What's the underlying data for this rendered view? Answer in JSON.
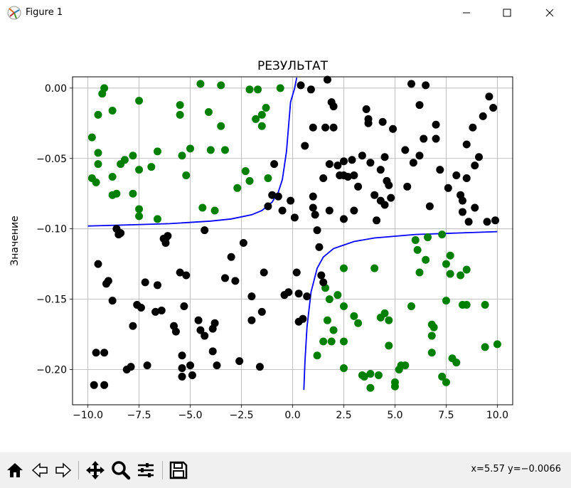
{
  "window": {
    "title": "Figure 1",
    "icon": "matplotlib-icon",
    "controls": [
      "minimize-icon",
      "maximize-icon",
      "close-icon"
    ]
  },
  "toolbar": {
    "buttons": [
      "home-icon",
      "back-icon",
      "forward-icon",
      "pan-icon",
      "zoom-icon",
      "subplots-icon",
      "save-icon"
    ],
    "coordinates": "x=5.57 y=−0.0066"
  },
  "chart_data": {
    "type": "scatter",
    "title": "РЕЗУЛЬТАТ",
    "xlabel": "",
    "ylabel": "Значение",
    "xlim": [
      -10.75,
      10.75
    ],
    "ylim": [
      -0.225,
      0.008
    ],
    "xticks": [
      -10.0,
      -7.5,
      -5.0,
      -2.5,
      0.0,
      2.5,
      5.0,
      7.5,
      10.0
    ],
    "xtick_labels": [
      "−10.0",
      "−7.5",
      "−5.0",
      "−2.5",
      "0.0",
      "2.5",
      "5.0",
      "7.5",
      "10.0"
    ],
    "yticks": [
      0.0,
      -0.05,
      -0.1,
      -0.15,
      -0.2
    ],
    "ytick_labels": [
      "0.00",
      "−0.05",
      "−0.10",
      "−0.15",
      "−0.20"
    ],
    "grid": true,
    "colors": {
      "green": "#008000",
      "black": "#000000",
      "curve": "#0000ff"
    },
    "series": [
      {
        "color": "#008000",
        "points": [
          [
            -9.8,
            -0.035
          ],
          [
            -9.8,
            -0.064
          ],
          [
            -9.6,
            -0.067
          ],
          [
            -9.5,
            -0.046
          ],
          [
            -9.5,
            -0.019
          ],
          [
            -9.5,
            -0.054
          ],
          [
            -9.3,
            -0.004
          ],
          [
            -9.2,
            0.0
          ],
          [
            -8.8,
            -0.016
          ],
          [
            -8.8,
            -0.063
          ],
          [
            -8.8,
            -0.076
          ],
          [
            -8.6,
            -0.075
          ],
          [
            -8.4,
            -0.054
          ],
          [
            -8.2,
            -0.051
          ],
          [
            -7.8,
            -0.048
          ],
          [
            -7.8,
            -0.075
          ],
          [
            -7.5,
            -0.009
          ],
          [
            -7.5,
            -0.058
          ],
          [
            -7.5,
            -0.086
          ],
          [
            -7.5,
            -0.091
          ],
          [
            -6.9,
            -0.056
          ],
          [
            -6.6,
            -0.045
          ],
          [
            -6.6,
            -0.093
          ],
          [
            -5.5,
            -0.012
          ],
          [
            -5.5,
            -0.019
          ],
          [
            -5.4,
            -0.048
          ],
          [
            -5.2,
            -0.062
          ],
          [
            -5.0,
            -0.043
          ],
          [
            -4.5,
            0.003
          ],
          [
            -4.4,
            -0.085
          ],
          [
            -4.1,
            -0.017
          ],
          [
            -4.0,
            -0.044
          ],
          [
            -3.8,
            -0.087
          ],
          [
            -3.5,
            0.002
          ],
          [
            -3.5,
            -0.027
          ],
          [
            -3.3,
            -0.044
          ],
          [
            -2.7,
            -0.071
          ],
          [
            -2.3,
            -0.059
          ],
          [
            -2.1,
            -0.066
          ],
          [
            -1.8,
            -0.022
          ],
          [
            -1.7,
            -0.001
          ],
          [
            -1.5,
            -0.019
          ],
          [
            -1.5,
            -0.027
          ],
          [
            -1.3,
            -0.014
          ],
          [
            -1.2,
            -0.064
          ],
          [
            -0.6,
            0.0
          ],
          [
            -2.1,
            -0.001
          ],
          [
            1.2,
            -0.19
          ],
          [
            1.5,
            -0.18
          ],
          [
            1.6,
            -0.142
          ],
          [
            1.7,
            -0.165
          ],
          [
            2.0,
            -0.172
          ],
          [
            1.9,
            -0.18
          ],
          [
            2.2,
            -0.147
          ],
          [
            2.5,
            -0.128
          ],
          [
            2.5,
            -0.155
          ],
          [
            2.5,
            -0.18
          ],
          [
            2.5,
            -0.199
          ],
          [
            3.0,
            -0.162
          ],
          [
            3.2,
            -0.167
          ],
          [
            3.5,
            -0.205
          ],
          [
            3.8,
            -0.213
          ],
          [
            3.8,
            -0.203
          ],
          [
            4.0,
            -0.128
          ],
          [
            4.2,
            -0.204
          ],
          [
            4.3,
            -0.163
          ],
          [
            4.5,
            -0.16
          ],
          [
            4.7,
            -0.165
          ],
          [
            4.7,
            -0.183
          ],
          [
            5.0,
            -0.209
          ],
          [
            5.0,
            -0.212
          ],
          [
            5.3,
            -0.197
          ],
          [
            5.2,
            -0.2
          ],
          [
            5.5,
            -0.197
          ],
          [
            5.8,
            -0.155
          ],
          [
            6.0,
            -0.108
          ],
          [
            6.1,
            -0.115
          ],
          [
            6.2,
            -0.131
          ],
          [
            6.5,
            -0.122
          ],
          [
            6.6,
            -0.106
          ],
          [
            6.8,
            -0.168
          ],
          [
            6.8,
            -0.176
          ],
          [
            6.8,
            -0.188
          ],
          [
            6.9,
            -0.17
          ],
          [
            7.3,
            -0.104
          ],
          [
            7.3,
            -0.205
          ],
          [
            7.5,
            -0.125
          ],
          [
            7.5,
            -0.151
          ],
          [
            7.7,
            -0.119
          ],
          [
            7.7,
            -0.132
          ],
          [
            7.8,
            -0.192
          ],
          [
            8.0,
            -0.195
          ],
          [
            8.2,
            -0.133
          ],
          [
            8.3,
            -0.154
          ],
          [
            8.5,
            -0.154
          ],
          [
            8.5,
            -0.129
          ],
          [
            9.4,
            -0.184
          ],
          [
            9.4,
            -0.154
          ],
          [
            10.0,
            -0.182
          ],
          [
            1.8,
            -0.15
          ],
          [
            3.4,
            -0.204
          ],
          [
            7.5,
            -0.209
          ]
        ]
      },
      {
        "color": "#000000",
        "points": [
          [
            -9.7,
            -0.211
          ],
          [
            -9.6,
            -0.188
          ],
          [
            -9.5,
            -0.125
          ],
          [
            -9.2,
            -0.188
          ],
          [
            -9.2,
            -0.211
          ],
          [
            -9.1,
            -0.139
          ],
          [
            -9.0,
            -0.137
          ],
          [
            -8.8,
            -0.151
          ],
          [
            -8.6,
            -0.1
          ],
          [
            -8.5,
            -0.104
          ],
          [
            -8.4,
            -0.103
          ],
          [
            -8.1,
            -0.2
          ],
          [
            -7.9,
            -0.198
          ],
          [
            -7.8,
            -0.169
          ],
          [
            -7.6,
            -0.154
          ],
          [
            -7.4,
            -0.156
          ],
          [
            -7.2,
            -0.138
          ],
          [
            -7.1,
            -0.197
          ],
          [
            -6.7,
            -0.159
          ],
          [
            -6.6,
            -0.14
          ],
          [
            -6.4,
            -0.158
          ],
          [
            -6.3,
            -0.107
          ],
          [
            -6.2,
            -0.107
          ],
          [
            -6.2,
            -0.11
          ],
          [
            -6.1,
            -0.105
          ],
          [
            -5.8,
            -0.169
          ],
          [
            -5.7,
            -0.173
          ],
          [
            -5.5,
            -0.131
          ],
          [
            -5.4,
            -0.19
          ],
          [
            -5.4,
            -0.199
          ],
          [
            -5.4,
            -0.205
          ],
          [
            -5.3,
            -0.155
          ],
          [
            -5.2,
            -0.133
          ],
          [
            -5.0,
            -0.197
          ],
          [
            -4.9,
            -0.204
          ],
          [
            -4.6,
            -0.165
          ],
          [
            -4.5,
            -0.172
          ],
          [
            -4.3,
            -0.176
          ],
          [
            -4.3,
            -0.101
          ],
          [
            -3.9,
            -0.171
          ],
          [
            -3.9,
            -0.187
          ],
          [
            -3.8,
            -0.167
          ],
          [
            -3.7,
            -0.197
          ],
          [
            -3.3,
            -0.135
          ],
          [
            -3.0,
            -0.12
          ],
          [
            -2.8,
            -0.137
          ],
          [
            -2.6,
            -0.194
          ],
          [
            -2.4,
            -0.11
          ],
          [
            -2.0,
            -0.148
          ],
          [
            -2.0,
            -0.165
          ],
          [
            -1.6,
            -0.198
          ],
          [
            -1.5,
            -0.159
          ],
          [
            -1.4,
            -0.131
          ],
          [
            -1.2,
            -0.084
          ],
          [
            -1.0,
            -0.076
          ],
          [
            -0.9,
            -0.054
          ],
          [
            -0.7,
            -0.077
          ],
          [
            -0.5,
            -0.087
          ],
          [
            -0.4,
            -0.147
          ],
          [
            -0.2,
            -0.145
          ],
          [
            -0.1,
            -0.08
          ],
          [
            0.1,
            -0.092
          ],
          [
            0.2,
            -0.131
          ],
          [
            0.3,
            -0.146
          ],
          [
            0.3,
            -0.166
          ],
          [
            0.4,
            0.002
          ],
          [
            0.5,
            -0.164
          ],
          [
            0.6,
            -0.041
          ],
          [
            0.7,
            -0.148
          ],
          [
            0.9,
            -0.001
          ],
          [
            1.0,
            -0.028
          ],
          [
            1.0,
            -0.077
          ],
          [
            1.0,
            -0.085
          ],
          [
            1.1,
            -0.09
          ],
          [
            1.2,
            -0.101
          ],
          [
            1.3,
            -0.113
          ],
          [
            1.4,
            -0.133
          ],
          [
            1.5,
            -0.138
          ],
          [
            1.5,
            -0.064
          ],
          [
            1.6,
            -0.028
          ],
          [
            1.7,
            0.006
          ],
          [
            1.8,
            -0.054
          ],
          [
            1.8,
            -0.087
          ],
          [
            1.9,
            -0.01
          ],
          [
            2.0,
            -0.013
          ],
          [
            2.0,
            -0.028
          ],
          [
            2.2,
            -0.055
          ],
          [
            2.3,
            -0.062
          ],
          [
            2.5,
            -0.062
          ],
          [
            2.5,
            -0.093
          ],
          [
            2.5,
            -0.052
          ],
          [
            2.7,
            -0.063
          ],
          [
            2.9,
            -0.051
          ],
          [
            3.0,
            -0.062
          ],
          [
            3.0,
            -0.087
          ],
          [
            3.2,
            -0.07
          ],
          [
            3.4,
            -0.048
          ],
          [
            3.6,
            -0.015
          ],
          [
            3.7,
            -0.022
          ],
          [
            3.7,
            -0.025
          ],
          [
            3.8,
            -0.053
          ],
          [
            4.0,
            -0.076
          ],
          [
            4.1,
            -0.094
          ],
          [
            4.3,
            -0.058
          ],
          [
            4.3,
            -0.08
          ],
          [
            4.4,
            -0.024
          ],
          [
            4.5,
            -0.049
          ],
          [
            4.5,
            -0.083
          ],
          [
            4.6,
            -0.066
          ],
          [
            4.7,
            -0.069
          ],
          [
            4.8,
            -0.078
          ],
          [
            4.9,
            -0.029
          ],
          [
            5.5,
            -0.044
          ],
          [
            5.6,
            -0.07
          ],
          [
            5.8,
            0.003
          ],
          [
            5.9,
            -0.053
          ],
          [
            6.2,
            -0.048
          ],
          [
            6.2,
            -0.012
          ],
          [
            6.4,
            -0.036
          ],
          [
            6.5,
            0.002
          ],
          [
            6.7,
            -0.084
          ],
          [
            7.0,
            -0.036
          ],
          [
            7.0,
            -0.026
          ],
          [
            7.2,
            -0.058
          ],
          [
            7.6,
            -0.071
          ],
          [
            8.0,
            -0.062
          ],
          [
            8.2,
            -0.076
          ],
          [
            8.3,
            -0.08
          ],
          [
            8.3,
            -0.088
          ],
          [
            8.5,
            -0.064
          ],
          [
            8.6,
            -0.095
          ],
          [
            8.8,
            -0.028
          ],
          [
            8.9,
            -0.055
          ],
          [
            8.9,
            -0.085
          ],
          [
            9.1,
            -0.049
          ],
          [
            9.3,
            -0.02
          ],
          [
            9.5,
            -0.095
          ],
          [
            9.6,
            -0.006
          ],
          [
            9.9,
            -0.094
          ],
          [
            9.8,
            -0.014
          ],
          [
            8.5,
            -0.04
          ]
        ]
      }
    ],
    "curves": [
      {
        "color": "#0000ff",
        "x": [
          -10.0,
          -8.0,
          -6.0,
          -4.0,
          -3.0,
          -2.0,
          -1.5,
          -1.0,
          -0.7,
          -0.5,
          -0.3,
          -0.1,
          0.1,
          0.2
        ],
        "y": [
          -0.098,
          -0.0972,
          -0.0963,
          -0.0945,
          -0.093,
          -0.09,
          -0.087,
          -0.081,
          -0.074,
          -0.065,
          -0.045,
          -0.01,
          0.0,
          0.0075
        ]
      },
      {
        "color": "#0000ff",
        "x": [
          0.55,
          0.6,
          0.7,
          0.9,
          1.2,
          1.5,
          2.0,
          3.0,
          4.0,
          6.0,
          8.0,
          10.0
        ],
        "y": [
          -0.2145,
          -0.195,
          -0.17,
          -0.145,
          -0.128,
          -0.12,
          -0.114,
          -0.109,
          -0.1065,
          -0.104,
          -0.103,
          -0.102
        ]
      }
    ]
  }
}
